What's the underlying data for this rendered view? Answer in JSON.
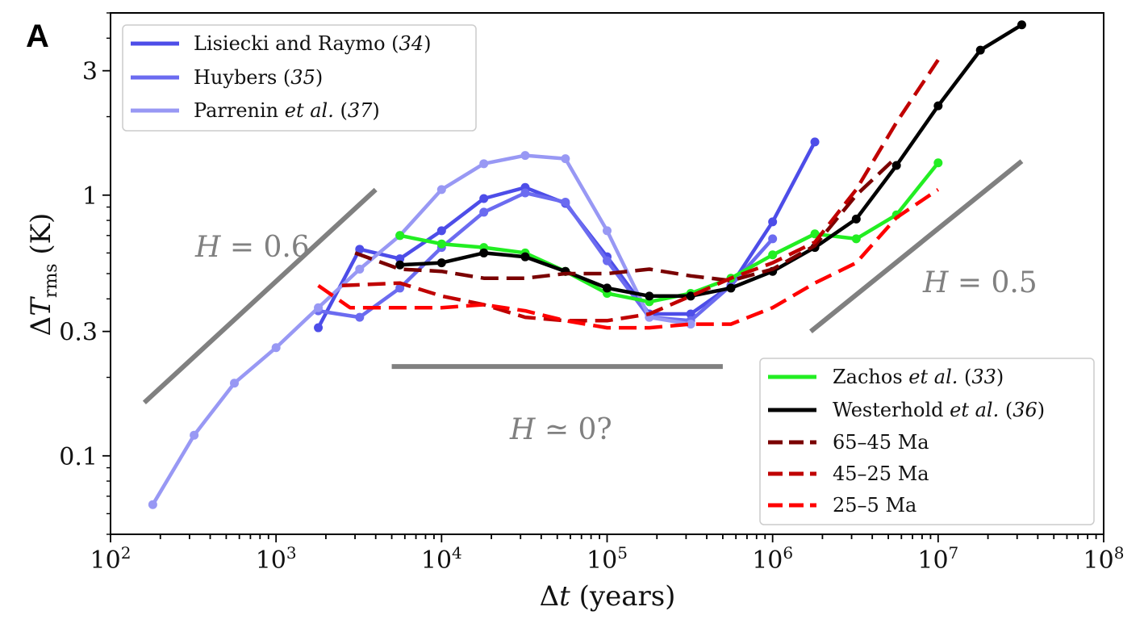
{
  "chart_data": {
    "type": "line",
    "panel_label": "A",
    "xscale": "log",
    "yscale": "log",
    "xlim": [
      100,
      100000000
    ],
    "ylim": [
      0.05,
      5.0
    ],
    "xlabel": "Δt (years)",
    "ylabel": "ΔTrms (K)",
    "xticks": [
      {
        "value": 100,
        "label": "10",
        "exp": "2"
      },
      {
        "value": 1000,
        "label": "10",
        "exp": "3"
      },
      {
        "value": 10000,
        "label": "10",
        "exp": "4"
      },
      {
        "value": 100000,
        "label": "10",
        "exp": "5"
      },
      {
        "value": 1000000,
        "label": "10",
        "exp": "6"
      },
      {
        "value": 10000000,
        "label": "10",
        "exp": "7"
      },
      {
        "value": 100000000,
        "label": "10",
        "exp": "8"
      }
    ],
    "yticks": [
      {
        "value": 0.1,
        "label": "0.1"
      },
      {
        "value": 0.3,
        "label": "0.3"
      },
      {
        "value": 1,
        "label": "1"
      },
      {
        "value": 3,
        "label": "3"
      }
    ],
    "series": [
      {
        "name": "Lisiecki and Raymo (34)",
        "color": "#4d4de8",
        "dash": "solid",
        "markers": true,
        "x": [
          1800,
          3200,
          5600,
          10000,
          18000,
          32000,
          56000,
          100000,
          180000,
          320000,
          560000,
          1000000,
          1800000
        ],
        "y": [
          0.31,
          0.62,
          0.57,
          0.73,
          0.97,
          1.07,
          0.93,
          0.58,
          0.35,
          0.35,
          0.45,
          0.79,
          1.6
        ]
      },
      {
        "name": "Huybers (35)",
        "color": "#6b6bf0",
        "dash": "solid",
        "markers": true,
        "x": [
          1800,
          3200,
          5600,
          10000,
          18000,
          32000,
          56000,
          100000,
          180000,
          320000,
          560000,
          1000000
        ],
        "y": [
          0.36,
          0.34,
          0.44,
          0.63,
          0.86,
          1.02,
          0.94,
          0.56,
          0.34,
          0.33,
          0.45,
          0.68
        ]
      },
      {
        "name": "Parrenin et al. (37)",
        "color": "#9898f4",
        "dash": "solid",
        "markers": true,
        "x": [
          180,
          320,
          560,
          1000,
          1800,
          3200,
          5600,
          10000,
          18000,
          32000,
          56000,
          100000,
          180000,
          320000
        ],
        "y": [
          0.065,
          0.12,
          0.19,
          0.26,
          0.37,
          0.52,
          0.7,
          1.05,
          1.32,
          1.42,
          1.38,
          0.73,
          0.34,
          0.32
        ]
      },
      {
        "name": "Zachos et al. (33)",
        "color": "#22ee22",
        "dash": "solid",
        "markers": true,
        "x": [
          5600,
          10000,
          18000,
          32000,
          56000,
          100000,
          180000,
          320000,
          560000,
          1000000,
          1800000,
          3200000,
          5600000,
          10000000
        ],
        "y": [
          0.7,
          0.65,
          0.63,
          0.6,
          0.51,
          0.42,
          0.39,
          0.42,
          0.48,
          0.59,
          0.71,
          0.68,
          0.84,
          1.33
        ]
      },
      {
        "name": "Westerhold et al. (36)",
        "color": "#000000",
        "dash": "solid",
        "markers": true,
        "x": [
          5600,
          10000,
          18000,
          32000,
          56000,
          100000,
          180000,
          320000,
          560000,
          1000000,
          1800000,
          3200000,
          5600000,
          10000000,
          18000000,
          32000000
        ],
        "y": [
          0.54,
          0.55,
          0.6,
          0.58,
          0.51,
          0.44,
          0.41,
          0.41,
          0.44,
          0.51,
          0.63,
          0.81,
          1.3,
          2.2,
          3.6,
          4.5
        ]
      },
      {
        "name": "65–45 Ma",
        "color": "#7a0000",
        "dash": "dashed",
        "markers": false,
        "x": [
          3000,
          5600,
          10000,
          18000,
          32000,
          56000,
          100000,
          180000,
          320000,
          560000,
          1000000,
          1800000,
          3200000,
          5600000
        ],
        "y": [
          0.6,
          0.52,
          0.51,
          0.48,
          0.48,
          0.5,
          0.5,
          0.52,
          0.49,
          0.47,
          0.52,
          0.64,
          1.0,
          1.4
        ]
      },
      {
        "name": "45–25 Ma",
        "color": "#c00000",
        "dash": "dashed",
        "markers": false,
        "x": [
          2500,
          5600,
          10000,
          18000,
          32000,
          56000,
          100000,
          180000,
          320000,
          560000,
          1000000,
          1800000,
          3200000,
          5600000,
          10000000
        ],
        "y": [
          0.45,
          0.46,
          0.41,
          0.38,
          0.34,
          0.33,
          0.33,
          0.35,
          0.41,
          0.48,
          0.55,
          0.66,
          1.05,
          1.9,
          3.3
        ]
      },
      {
        "name": "25–5 Ma",
        "color": "#ff0000",
        "dash": "dashed",
        "markers": false,
        "x": [
          1800,
          2800,
          5600,
          10000,
          18000,
          32000,
          56000,
          100000,
          180000,
          320000,
          560000,
          1000000,
          1800000,
          3200000,
          5600000,
          10000000
        ],
        "y": [
          0.45,
          0.37,
          0.37,
          0.37,
          0.38,
          0.36,
          0.33,
          0.31,
          0.31,
          0.32,
          0.32,
          0.37,
          0.46,
          0.55,
          0.82,
          1.05
        ]
      }
    ],
    "reference_lines": [
      {
        "label": "H = 0.6",
        "color": "#808080",
        "x": [
          160,
          4000
        ],
        "y": [
          0.16,
          1.05
        ]
      },
      {
        "label": "H ≃ 0?",
        "color": "#808080",
        "x": [
          5000,
          500000
        ],
        "y": [
          0.22,
          0.22
        ]
      },
      {
        "label": "H = 0.5",
        "color": "#808080",
        "x": [
          1700000,
          32000000
        ],
        "y": [
          0.3,
          1.35
        ]
      }
    ],
    "annotations": [
      {
        "text": "H = 0.6",
        "x": 1000,
        "y": 0.77
      },
      {
        "text": "H ≃ 0?",
        "x": 40000,
        "y": 0.145
      },
      {
        "text": "H = 0.5",
        "x": 20000000,
        "y": 0.5
      }
    ],
    "legends": [
      {
        "placement": "top-left",
        "entries": [
          "Lisiecki and Raymo (34)",
          "Huybers (35)",
          "Parrenin et al. (37)"
        ]
      },
      {
        "placement": "bottom-right",
        "entries": [
          "Zachos et al. (33)",
          "Westerhold et al. (36)",
          "65–45 Ma",
          "45–25 Ma",
          "25–5 Ma"
        ]
      }
    ]
  },
  "text": {
    "panel_label": "A",
    "xlabel_delta": "Δ",
    "xlabel_var": "t",
    "xlabel_unit": " (years)",
    "ylabel_delta": "Δ",
    "ylabel_var": "T",
    "ylabel_sub": "rms",
    "ylabel_unit": " (K)",
    "legend1": [
      {
        "pre": "Lisiecki and Raymo (",
        "ref": "34",
        "italic_mid": "",
        "post": ")"
      },
      {
        "pre": "Huybers (",
        "ref": "35",
        "italic_mid": "",
        "post": ")"
      },
      {
        "pre": "Parrenin ",
        "italic_mid": "et al.",
        "ref": "37",
        "post": ")"
      }
    ],
    "legend2": [
      {
        "pre": "Zachos ",
        "italic_mid": "et al.",
        "ref": "33",
        "post": ")"
      },
      {
        "pre": "Westerhold ",
        "italic_mid": "et al.",
        "ref": "36",
        "post": ")"
      },
      {
        "pre": "65–45 Ma",
        "italic_mid": "",
        "ref": "",
        "post": ""
      },
      {
        "pre": "45–25 Ma",
        "italic_mid": "",
        "ref": "",
        "post": ""
      },
      {
        "pre": "25–5 Ma",
        "italic_mid": "",
        "ref": "",
        "post": ""
      }
    ],
    "annot_h06_var": "H",
    "annot_h06_rest": " = 0.6",
    "annot_h0_var": "H",
    "annot_h0_rest": " ≃ 0?",
    "annot_h05_var": "H",
    "annot_h05_rest": " = 0.5"
  }
}
